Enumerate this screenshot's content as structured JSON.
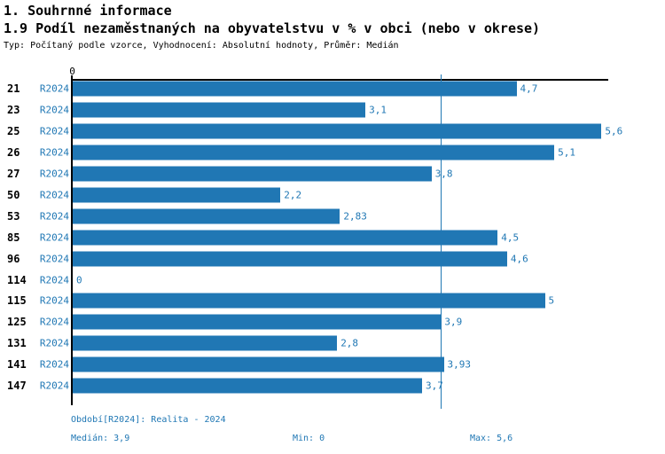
{
  "header": {
    "section_title": "1. Souhrnné informace",
    "chart_title": "1.9 Podíl nezaměstnaných na obyvatelstvu v % v obci (nebo v okrese)",
    "meta": "Typ: Počítaný podle vzorce, Vyhodnocení: Absolutní hodnoty, Průměr: Medián"
  },
  "chart_data": {
    "type": "bar",
    "orientation": "horizontal",
    "title": "1.9 Podíl nezaměstnaných na obyvatelstvu v % v obci (nebo v okrese)",
    "categories": [
      "21",
      "23",
      "25",
      "26",
      "27",
      "50",
      "53",
      "85",
      "96",
      "114",
      "115",
      "125",
      "131",
      "141",
      "147"
    ],
    "series": [
      {
        "name": "R2024",
        "values": [
          4.7,
          3.1,
          5.6,
          5.1,
          3.8,
          2.2,
          2.83,
          4.5,
          4.6,
          0,
          5,
          3.9,
          2.8,
          3.93,
          3.7
        ]
      }
    ],
    "value_labels": [
      "4,7",
      "3,1",
      "5,6",
      "5,1",
      "3,8",
      "2,2",
      "2,83",
      "4,5",
      "4,6",
      "0",
      "5",
      "3,9",
      "2,8",
      "3,93",
      "3,7"
    ],
    "x_ticks": [
      "0"
    ],
    "xlim": [
      0,
      5.7
    ],
    "grid": false,
    "median": 3.9,
    "min": 0,
    "max": 5.6,
    "bar_color": "#2077b4",
    "label_color": "#1f77b4"
  },
  "footer": {
    "period_label": "Období[R2024]: Realita - 2024",
    "median_label": "Medián: 3,9",
    "min_label": "Min: 0",
    "max_label": "Max: 5,6"
  }
}
